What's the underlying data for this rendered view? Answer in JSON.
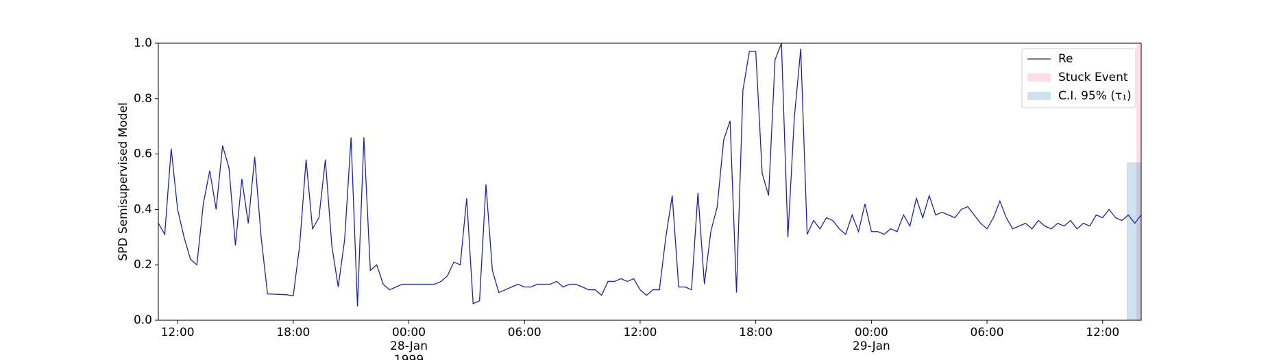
{
  "chart_data": {
    "type": "line",
    "ylabel": "SPD Semisupervised Model",
    "xlim": [
      "1999-01-27T11:00",
      "1999-01-29T14:00"
    ],
    "xticks": [
      {
        "value": "1999-01-27T12:00",
        "label": "12:00"
      },
      {
        "value": "1999-01-27T18:00",
        "label": "18:00"
      },
      {
        "value": "1999-01-28T00:00",
        "label": "00:00\n28-Jan\n1999"
      },
      {
        "value": "1999-01-28T06:00",
        "label": "06:00"
      },
      {
        "value": "1999-01-28T12:00",
        "label": "12:00"
      },
      {
        "value": "1999-01-28T18:00",
        "label": "18:00"
      },
      {
        "value": "1999-01-29T00:00",
        "label": "00:00\n29-Jan"
      },
      {
        "value": "1999-01-29T06:00",
        "label": "06:00"
      },
      {
        "value": "1999-01-29T12:00",
        "label": "12:00"
      }
    ],
    "ylim": [
      0,
      1
    ],
    "yticks": [
      {
        "value": 0,
        "label": "0.0"
      },
      {
        "value": 0.2,
        "label": "0.2"
      },
      {
        "value": 0.4,
        "label": "0.4"
      },
      {
        "value": 0.6,
        "label": "0.6"
      },
      {
        "value": 0.8,
        "label": "0.8"
      },
      {
        "value": 1,
        "label": "1.0"
      }
    ],
    "legend": "upper right",
    "x": [
      "1999-01-27T11:00",
      "1999-01-27T11:20",
      "1999-01-27T11:40",
      "1999-01-27T12:00",
      "1999-01-27T12:20",
      "1999-01-27T12:40",
      "1999-01-27T13:00",
      "1999-01-27T13:20",
      "1999-01-27T13:40",
      "1999-01-27T14:00",
      "1999-01-27T14:20",
      "1999-01-27T14:40",
      "1999-01-27T15:00",
      "1999-01-27T15:20",
      "1999-01-27T15:40",
      "1999-01-27T16:00",
      "1999-01-27T16:20",
      "1999-01-27T16:40",
      "1999-01-27T17:00",
      "1999-01-27T17:20",
      "1999-01-27T17:40",
      "1999-01-27T18:00",
      "1999-01-27T18:20",
      "1999-01-27T18:40",
      "1999-01-27T19:00",
      "1999-01-27T19:20",
      "1999-01-27T19:40",
      "1999-01-27T20:00",
      "1999-01-27T20:20",
      "1999-01-27T20:40",
      "1999-01-27T21:00",
      "1999-01-27T21:20",
      "1999-01-27T21:40",
      "1999-01-27T22:00",
      "1999-01-27T22:20",
      "1999-01-27T22:40",
      "1999-01-27T23:00",
      "1999-01-27T23:20",
      "1999-01-27T23:40",
      "1999-01-28T00:00",
      "1999-01-28T00:20",
      "1999-01-28T00:40",
      "1999-01-28T01:00",
      "1999-01-28T01:20",
      "1999-01-28T01:40",
      "1999-01-28T02:00",
      "1999-01-28T02:20",
      "1999-01-28T02:40",
      "1999-01-28T03:00",
      "1999-01-28T03:20",
      "1999-01-28T03:40",
      "1999-01-28T04:00",
      "1999-01-28T04:20",
      "1999-01-28T04:40",
      "1999-01-28T05:00",
      "1999-01-28T05:20",
      "1999-01-28T05:40",
      "1999-01-28T06:00",
      "1999-01-28T06:20",
      "1999-01-28T06:40",
      "1999-01-28T07:00",
      "1999-01-28T07:20",
      "1999-01-28T07:40",
      "1999-01-28T08:00",
      "1999-01-28T08:20",
      "1999-01-28T08:40",
      "1999-01-28T09:00",
      "1999-01-28T09:20",
      "1999-01-28T09:40",
      "1999-01-28T10:00",
      "1999-01-28T10:20",
      "1999-01-28T10:40",
      "1999-01-28T11:00",
      "1999-01-28T11:20",
      "1999-01-28T11:40",
      "1999-01-28T12:00",
      "1999-01-28T12:20",
      "1999-01-28T12:40",
      "1999-01-28T13:00",
      "1999-01-28T13:20",
      "1999-01-28T13:40",
      "1999-01-28T14:00",
      "1999-01-28T14:20",
      "1999-01-28T14:40",
      "1999-01-28T15:00",
      "1999-01-28T15:20",
      "1999-01-28T15:40",
      "1999-01-28T16:00",
      "1999-01-28T16:20",
      "1999-01-28T16:40",
      "1999-01-28T17:00",
      "1999-01-28T17:20",
      "1999-01-28T17:40",
      "1999-01-28T18:00",
      "1999-01-28T18:20",
      "1999-01-28T18:40",
      "1999-01-28T19:00",
      "1999-01-28T19:20",
      "1999-01-28T19:40",
      "1999-01-28T20:00",
      "1999-01-28T20:20",
      "1999-01-28T20:40",
      "1999-01-28T21:00",
      "1999-01-28T21:20",
      "1999-01-28T21:40",
      "1999-01-28T22:00",
      "1999-01-28T22:20",
      "1999-01-28T22:40",
      "1999-01-28T23:00",
      "1999-01-28T23:20",
      "1999-01-28T23:40",
      "1999-01-29T00:00",
      "1999-01-29T00:20",
      "1999-01-29T00:40",
      "1999-01-29T01:00",
      "1999-01-29T01:20",
      "1999-01-29T01:40",
      "1999-01-29T02:00",
      "1999-01-29T02:20",
      "1999-01-29T02:40",
      "1999-01-29T03:00",
      "1999-01-29T03:20",
      "1999-01-29T03:40",
      "1999-01-29T04:00",
      "1999-01-29T04:20",
      "1999-01-29T04:40",
      "1999-01-29T05:00",
      "1999-01-29T05:20",
      "1999-01-29T05:40",
      "1999-01-29T06:00",
      "1999-01-29T06:20",
      "1999-01-29T06:40",
      "1999-01-29T07:00",
      "1999-01-29T07:20",
      "1999-01-29T07:40",
      "1999-01-29T08:00",
      "1999-01-29T08:20",
      "1999-01-29T08:40",
      "1999-01-29T09:00",
      "1999-01-29T09:20",
      "1999-01-29T09:40",
      "1999-01-29T10:00",
      "1999-01-29T10:20",
      "1999-01-29T10:40",
      "1999-01-29T11:00",
      "1999-01-29T11:20",
      "1999-01-29T11:40",
      "1999-01-29T12:00",
      "1999-01-29T12:20",
      "1999-01-29T12:40",
      "1999-01-29T13:00",
      "1999-01-29T13:20",
      "1999-01-29T13:40",
      "1999-01-29T14:00"
    ],
    "series": [
      {
        "name": "Re",
        "color": "#1c1cc8",
        "values": [
          0.35,
          0.31,
          0.62,
          0.4,
          0.3,
          0.22,
          0.2,
          0.42,
          0.54,
          0.4,
          0.63,
          0.55,
          0.27,
          0.51,
          0.35,
          0.59,
          0.3,
          0.095,
          0.094,
          0.093,
          0.092,
          0.088,
          0.27,
          0.58,
          0.33,
          0.37,
          0.58,
          0.27,
          0.12,
          0.29,
          0.66,
          0.05,
          0.66,
          0.18,
          0.2,
          0.13,
          0.11,
          0.12,
          0.13,
          0.13,
          0.13,
          0.13,
          0.13,
          0.13,
          0.14,
          0.16,
          0.21,
          0.2,
          0.44,
          0.06,
          0.07,
          0.49,
          0.18,
          0.1,
          0.11,
          0.12,
          0.13,
          0.12,
          0.12,
          0.13,
          0.13,
          0.13,
          0.14,
          0.12,
          0.13,
          0.13,
          0.12,
          0.11,
          0.11,
          0.09,
          0.14,
          0.14,
          0.15,
          0.14,
          0.15,
          0.11,
          0.09,
          0.11,
          0.11,
          0.3,
          0.45,
          0.12,
          0.12,
          0.11,
          0.46,
          0.13,
          0.32,
          0.41,
          0.65,
          0.72,
          0.1,
          0.83,
          0.97,
          0.97,
          0.53,
          0.45,
          0.94,
          1.0,
          0.3,
          0.73,
          0.98,
          0.31,
          0.36,
          0.33,
          0.37,
          0.36,
          0.33,
          0.31,
          0.38,
          0.32,
          0.42,
          0.32,
          0.32,
          0.31,
          0.33,
          0.32,
          0.38,
          0.34,
          0.44,
          0.37,
          0.45,
          0.38,
          0.39,
          0.38,
          0.37,
          0.4,
          0.41,
          0.38,
          0.35,
          0.33,
          0.37,
          0.43,
          0.37,
          0.33,
          0.34,
          0.35,
          0.33,
          0.36,
          0.34,
          0.33,
          0.35,
          0.34,
          0.36,
          0.33,
          0.35,
          0.34,
          0.38,
          0.37,
          0.4,
          0.37,
          0.36,
          0.38,
          0.35,
          0.38
        ]
      }
    ],
    "spans": [
      {
        "name": "Stuck Event",
        "color": "#ffc0cb",
        "start": "1999-01-29T13:45",
        "end": "1999-01-29T14:00"
      },
      {
        "name": "C.I. 95% (τ₁)",
        "color": "#1f77b4",
        "start": "1999-01-29T13:15",
        "end": "1999-01-29T14:00",
        "upper": 0.57
      }
    ]
  }
}
